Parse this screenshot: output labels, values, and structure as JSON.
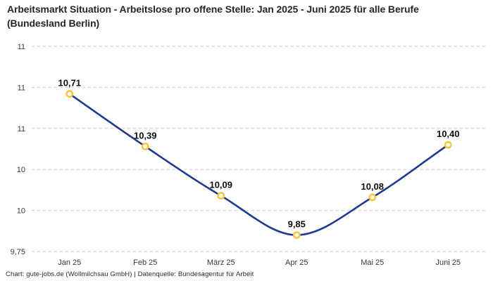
{
  "header": {
    "title": "Arbeitsmarkt Situation - Arbeitslose pro offene Stelle: Jan 2025 - Juni 2025 für alle Berufe (Bundesland Berlin)"
  },
  "footer": {
    "text": "Chart: gute-jobs.de (Wollmilchsau GmbH) | Datenquelle: Bundesagentur für Arbeit"
  },
  "chart_data": {
    "type": "line",
    "title": "Arbeitsmarkt Situation - Arbeitslose pro offene Stelle: Jan 2025 - Juni 2025 für alle Berufe (Bundesland Berlin)",
    "categories": [
      "Jan 25",
      "Feb 25",
      "März 25",
      "Apr 25",
      "Mai 25",
      "Juni 25"
    ],
    "values": [
      10.71,
      10.39,
      10.09,
      9.85,
      10.08,
      10.4
    ],
    "point_labels": [
      "10,71",
      "10,39",
      "10,09",
      "9,85",
      "10,08",
      "10,40"
    ],
    "xlabel": "",
    "ylabel": "",
    "ylim": [
      9.75,
      11.0
    ],
    "y_ticks": [
      {
        "value": 9.75,
        "label": "9,75"
      },
      {
        "value": 10.0,
        "label": "10"
      },
      {
        "value": 10.25,
        "label": "10"
      },
      {
        "value": 10.5,
        "label": "11"
      },
      {
        "value": 10.75,
        "label": "11"
      },
      {
        "value": 11.0,
        "label": "11"
      }
    ],
    "grid": "horizontal-dashed",
    "legend": "none",
    "line_style": "smooth",
    "colors": {
      "line": "#1e3a96",
      "marker_stroke": "#fcc232",
      "marker_fill": "#ffffff",
      "grid": "#cccccc",
      "point_label": "#0d0d0d",
      "tick_label": "#383838"
    }
  }
}
